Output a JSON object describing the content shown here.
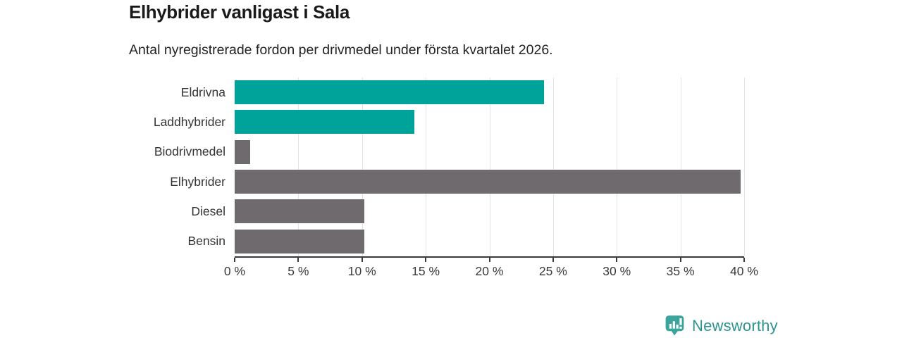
{
  "header": {
    "title": "Elhybrider vanligast i Sala",
    "subtitle": "Antal nyregistrerade fordon per drivmedel under första kvartalet 2026."
  },
  "chart_data": {
    "type": "bar",
    "orientation": "horizontal",
    "title": "Elhybrider vanligast i Sala",
    "subtitle": "Antal nyregistrerade fordon per drivmedel under första kvartalet 2026.",
    "categories": [
      "Eldrivna",
      "Laddhybrider",
      "Biodrivmedel",
      "Elhybrider",
      "Diesel",
      "Bensin"
    ],
    "values": [
      24.3,
      14.1,
      1.2,
      39.7,
      10.2,
      10.2
    ],
    "unit": "%",
    "bar_colors": [
      "#00A39A",
      "#00A39A",
      "#6E6A6E",
      "#6E6A6E",
      "#6E6A6E",
      "#6E6A6E"
    ],
    "xlim": [
      0,
      40
    ],
    "x_tick_step": 5,
    "x_tick_labels": [
      "0 %",
      "5 %",
      "10 %",
      "15 %",
      "20 %",
      "25 %",
      "30 %",
      "35 %",
      "40 %"
    ],
    "grid": "vertical",
    "legend": "none",
    "colors": {
      "highlight": "#00A39A",
      "default": "#6E6A6E",
      "gridline": "#E4E4E4",
      "axis": "#3B3B3B",
      "category_label": "#333333",
      "tick_label": "#3A3A3A"
    }
  },
  "footer": {
    "brand": "Newsworthy",
    "brand_color": "#2E948E",
    "logo_icon": "bar-chart-speech-bubble-icon",
    "logo_color": "#3DA49B"
  }
}
